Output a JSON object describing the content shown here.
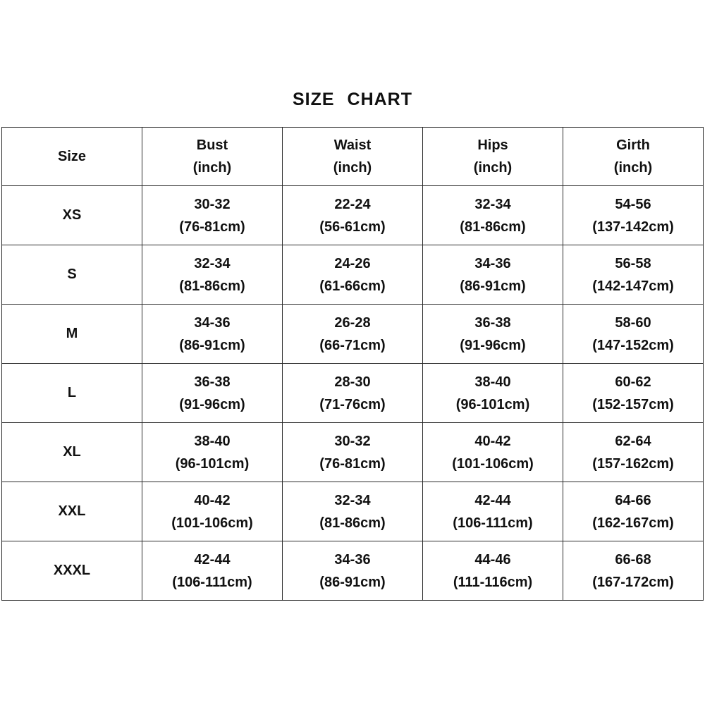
{
  "title": "SIZE CHART",
  "chart_data": {
    "type": "table",
    "title": "SIZE CHART",
    "background": "#ffffff",
    "text_color": "#111111",
    "border_color": "#2b2b2b",
    "columns": [
      {
        "label": "Size",
        "unit": ""
      },
      {
        "label": "Bust",
        "unit": "(inch)"
      },
      {
        "label": "Waist",
        "unit": "(inch)"
      },
      {
        "label": "Hips",
        "unit": "(inch)"
      },
      {
        "label": "Girth",
        "unit": "(inch)"
      }
    ],
    "rows": [
      {
        "size": "XS",
        "cells": [
          {
            "inch": "30-32",
            "cm": "(76-81cm)"
          },
          {
            "inch": "22-24",
            "cm": "(56-61cm)"
          },
          {
            "inch": "32-34",
            "cm": "(81-86cm)"
          },
          {
            "inch": "54-56",
            "cm": "(137-142cm)"
          }
        ]
      },
      {
        "size": "S",
        "cells": [
          {
            "inch": "32-34",
            "cm": "(81-86cm)"
          },
          {
            "inch": "24-26",
            "cm": "(61-66cm)"
          },
          {
            "inch": "34-36",
            "cm": "(86-91cm)"
          },
          {
            "inch": "56-58",
            "cm": "(142-147cm)"
          }
        ]
      },
      {
        "size": "M",
        "cells": [
          {
            "inch": "34-36",
            "cm": "(86-91cm)"
          },
          {
            "inch": "26-28",
            "cm": "(66-71cm)"
          },
          {
            "inch": "36-38",
            "cm": "(91-96cm)"
          },
          {
            "inch": "58-60",
            "cm": "(147-152cm)"
          }
        ]
      },
      {
        "size": "L",
        "cells": [
          {
            "inch": "36-38",
            "cm": "(91-96cm)"
          },
          {
            "inch": "28-30",
            "cm": "(71-76cm)"
          },
          {
            "inch": "38-40",
            "cm": "(96-101cm)"
          },
          {
            "inch": "60-62",
            "cm": "(152-157cm)"
          }
        ]
      },
      {
        "size": "XL",
        "cells": [
          {
            "inch": "38-40",
            "cm": "(96-101cm)"
          },
          {
            "inch": "30-32",
            "cm": "(76-81cm)"
          },
          {
            "inch": "40-42",
            "cm": "(101-106cm)"
          },
          {
            "inch": "62-64",
            "cm": "(157-162cm)"
          }
        ]
      },
      {
        "size": "XXL",
        "cells": [
          {
            "inch": "40-42",
            "cm": "(101-106cm)"
          },
          {
            "inch": "32-34",
            "cm": "(81-86cm)"
          },
          {
            "inch": "42-44",
            "cm": "(106-111cm)"
          },
          {
            "inch": "64-66",
            "cm": "(162-167cm)"
          }
        ]
      },
      {
        "size": "XXXL",
        "cells": [
          {
            "inch": "42-44",
            "cm": "(106-111cm)"
          },
          {
            "inch": "34-36",
            "cm": "(86-91cm)"
          },
          {
            "inch": "44-46",
            "cm": "(111-116cm)"
          },
          {
            "inch": "66-68",
            "cm": "(167-172cm)"
          }
        ]
      }
    ]
  }
}
